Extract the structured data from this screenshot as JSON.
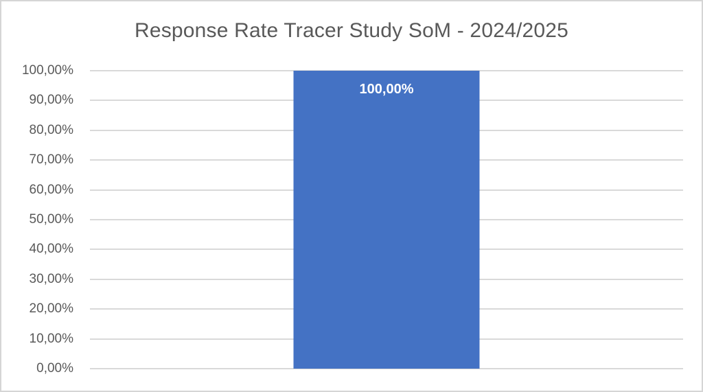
{
  "chart_data": {
    "type": "bar",
    "title": "Response Rate Tracer Study SoM - 2024/2025",
    "categories": [
      ""
    ],
    "values": [
      100.0
    ],
    "data_labels": [
      "100,00%"
    ],
    "xlabel": "",
    "ylabel": "",
    "ylim": [
      0,
      100
    ],
    "y_tick_step": 10,
    "y_ticks": [
      "100,00%",
      "90,00%",
      "80,00%",
      "70,00%",
      "60,00%",
      "50,00%",
      "40,00%",
      "30,00%",
      "20,00%",
      "10,00%",
      "0,00%"
    ],
    "grid": "horizontal",
    "legend": "none",
    "number_format": "percent, comma decimal separator, 2 decimals",
    "colors": {
      "bar": "#4472C4",
      "title": "#595959",
      "tick_label": "#595959",
      "gridline": "#D9D9D9",
      "data_label": "#FFFFFF",
      "frame_border": "#D5D5D5",
      "background": "#FFFFFF"
    }
  }
}
